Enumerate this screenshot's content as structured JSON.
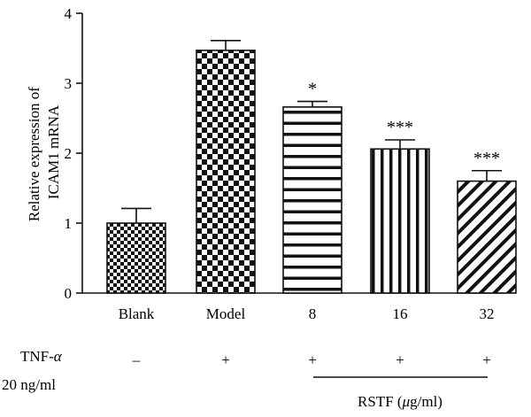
{
  "chart_data": {
    "type": "bar",
    "title": "",
    "xlabel": "",
    "ylabel": "Relative expression of ICAM1 mRNA",
    "ylabel_lines": [
      "Relative expression of",
      "ICAM1 mRNA"
    ],
    "ylim": [
      0,
      4
    ],
    "yticks": [
      "0",
      "1",
      "2",
      "3",
      "4"
    ],
    "grid": false,
    "legend": "none",
    "categories": [
      "Blank",
      "Model",
      "8",
      "16",
      "32"
    ],
    "values": [
      1.0,
      3.47,
      2.66,
      2.06,
      1.6
    ],
    "errors": [
      0.21,
      0.14,
      0.08,
      0.13,
      0.15
    ],
    "patterns": [
      "fine-checker",
      "coarse-checker",
      "horizontal-stripes",
      "vertical-stripes",
      "diagonal-stripes"
    ],
    "significance": [
      "",
      "",
      "*",
      "***",
      "***"
    ],
    "conditions": {
      "tnf_label": "TNF-",
      "tnf_symbol": "α",
      "concentration": "20 ng/ml",
      "marks": [
        "–",
        "+",
        "+",
        "+",
        "+"
      ]
    },
    "group_label": {
      "text": "RSTF (",
      "unit_symbol": "μ",
      "unit_rest": "g/ml)"
    }
  }
}
